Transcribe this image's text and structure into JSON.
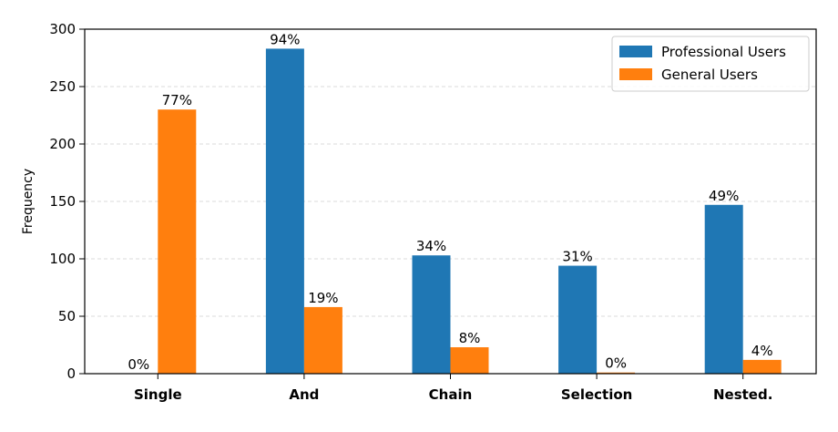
{
  "chart_data": {
    "type": "bar",
    "ylabel": "Frequency",
    "xlabel": "",
    "ylim": [
      0,
      300
    ],
    "yticks": [
      0,
      50,
      100,
      150,
      200,
      250,
      300
    ],
    "grid": "y-dashed",
    "legend_position": "top-right",
    "categories": [
      "Single",
      "And",
      "Chain",
      "Selection",
      "Nested."
    ],
    "series": [
      {
        "name": "Professional Users",
        "color": "#1f77b4",
        "values": [
          0,
          283,
          103,
          94,
          147
        ],
        "labels": [
          "0%",
          "94%",
          "34%",
          "31%",
          "49%"
        ]
      },
      {
        "name": "General Users",
        "color": "#ff7f0e",
        "values": [
          230,
          58,
          23,
          1,
          12
        ],
        "labels": [
          "77%",
          "19%",
          "8%",
          "0%",
          "4%"
        ]
      }
    ]
  }
}
